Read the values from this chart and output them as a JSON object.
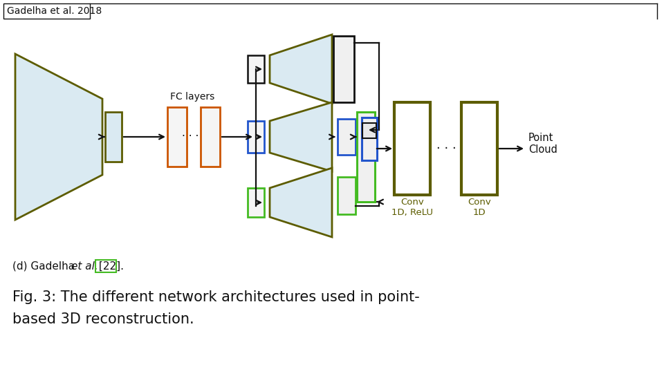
{
  "title_box_text": "Gadelha et al. 2018",
  "bg_color": "#ffffff",
  "dark_olive": "#5c5c00",
  "light_blue_fill": "#daeaf2",
  "orange_color": "#cc5500",
  "blue_color": "#2255cc",
  "green_color": "#44bb22",
  "black": "#111111",
  "conv_label1": "Conv\n1D, ReLU",
  "conv_label2": "Conv\n1D",
  "conv_label_color": "#5c5c00"
}
